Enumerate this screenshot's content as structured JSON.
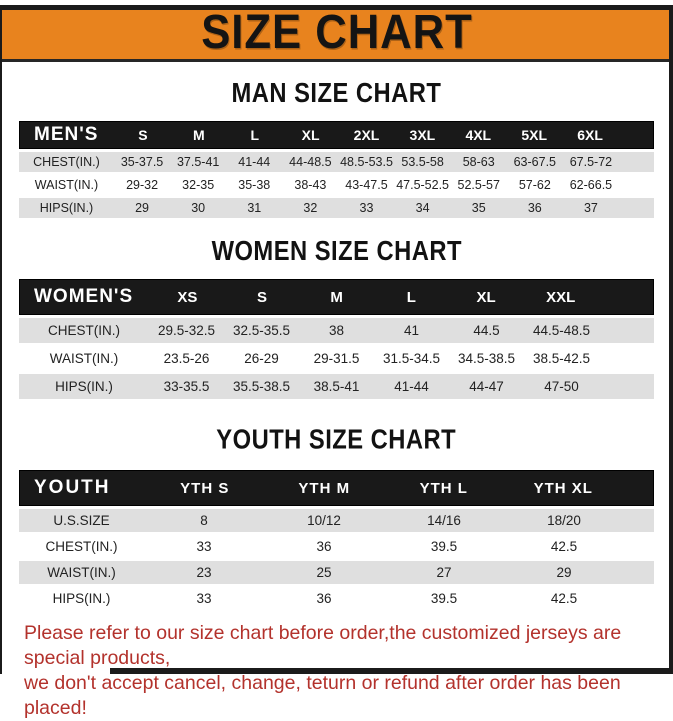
{
  "banner": {
    "title": "SIZE CHART"
  },
  "colors": {
    "banner_orange": "#e8831e",
    "header_black": "#191919",
    "stripe_gray": "#dfdfdf",
    "disclaimer_red": "#b3322c"
  },
  "sections": {
    "men": {
      "heading": "MAN SIZE CHART",
      "table": {
        "header": [
          "MEN'S",
          "S",
          "M",
          "L",
          "XL",
          "2XL",
          "3XL",
          "4XL",
          "5XL",
          "6XL"
        ],
        "rows": [
          [
            "CHEST(IN.)",
            "35-37.5",
            "37.5-41",
            "41-44",
            "44-48.5",
            "48.5-53.5",
            "53.5-58",
            "58-63",
            "63-67.5",
            "67.5-72"
          ],
          [
            "WAIST(IN.)",
            "29-32",
            "32-35",
            "35-38",
            "38-43",
            "43-47.5",
            "47.5-52.5",
            "52.5-57",
            "57-62",
            "62-66.5"
          ],
          [
            "HIPS(IN.)",
            "29",
            "30",
            "31",
            "32",
            "33",
            "34",
            "35",
            "36",
            "37"
          ]
        ]
      }
    },
    "women": {
      "heading": "WOMEN SIZE CHART",
      "table": {
        "header": [
          "WOMEN'S",
          "XS",
          "S",
          "M",
          "L",
          "XL",
          "XXL"
        ],
        "rows": [
          [
            "CHEST(IN.)",
            "29.5-32.5",
            "32.5-35.5",
            "38",
            "41",
            "44.5",
            "44.5-48.5"
          ],
          [
            "WAIST(IN.)",
            "23.5-26",
            "26-29",
            "29-31.5",
            "31.5-34.5",
            "34.5-38.5",
            "38.5-42.5"
          ],
          [
            "HIPS(IN.)",
            "33-35.5",
            "35.5-38.5",
            "38.5-41",
            "41-44",
            "44-47",
            "47-50"
          ]
        ]
      }
    },
    "youth": {
      "heading": "YOUTH SIZE CHART",
      "table": {
        "header": [
          "YOUTH",
          "YTH S",
          "YTH M",
          "YTH L",
          "YTH XL"
        ],
        "rows": [
          [
            "U.S.SIZE",
            "8",
            "10/12",
            "14/16",
            "18/20"
          ],
          [
            "CHEST(IN.)",
            "33",
            "36",
            "39.5",
            "42.5"
          ],
          [
            "WAIST(IN.)",
            "23",
            "25",
            "27",
            "29"
          ],
          [
            "HIPS(IN.)",
            "33",
            "36",
            "39.5",
            "42.5"
          ]
        ]
      }
    }
  },
  "disclaimer": {
    "line1": "Please refer to our size chart before order,the customized jerseys are special products,",
    "line2": "we don't accept cancel, change, teturn or refund after order has been placed!"
  }
}
